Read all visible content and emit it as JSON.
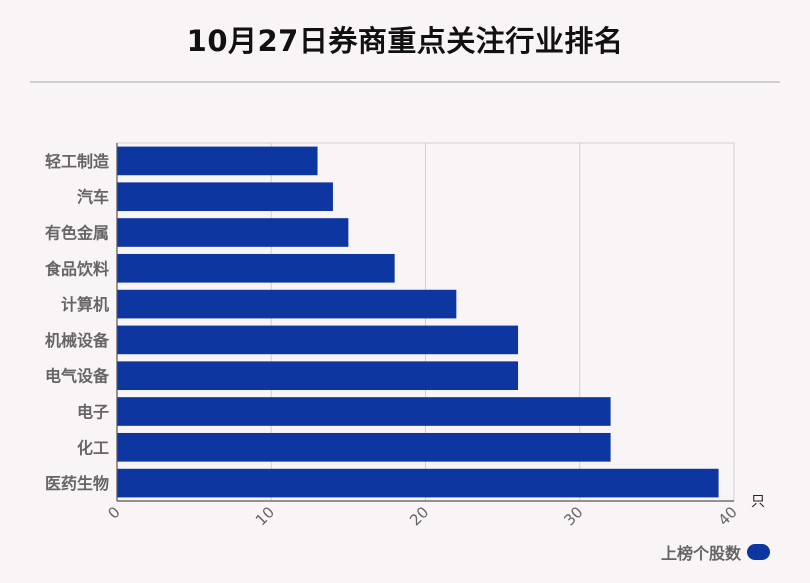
{
  "title": "10月27日券商重点关注行业排名",
  "chart_data": {
    "type": "bar",
    "orientation": "horizontal",
    "categories": [
      "轻工制造",
      "汽车",
      "有色金属",
      "食品饮料",
      "计算机",
      "机械设备",
      "电气设备",
      "电子",
      "化工",
      "医药生物"
    ],
    "series": [
      {
        "name": "上榜个股数",
        "values": [
          13,
          14,
          15,
          18,
          22,
          26,
          26,
          32,
          32,
          39
        ]
      }
    ],
    "xlim": [
      0,
      40
    ],
    "xticks": [
      0,
      10,
      20,
      30,
      40
    ],
    "x_unit": "只",
    "grid": true,
    "legend_position": "bottom-right",
    "bar_color": "#0e36a0"
  }
}
